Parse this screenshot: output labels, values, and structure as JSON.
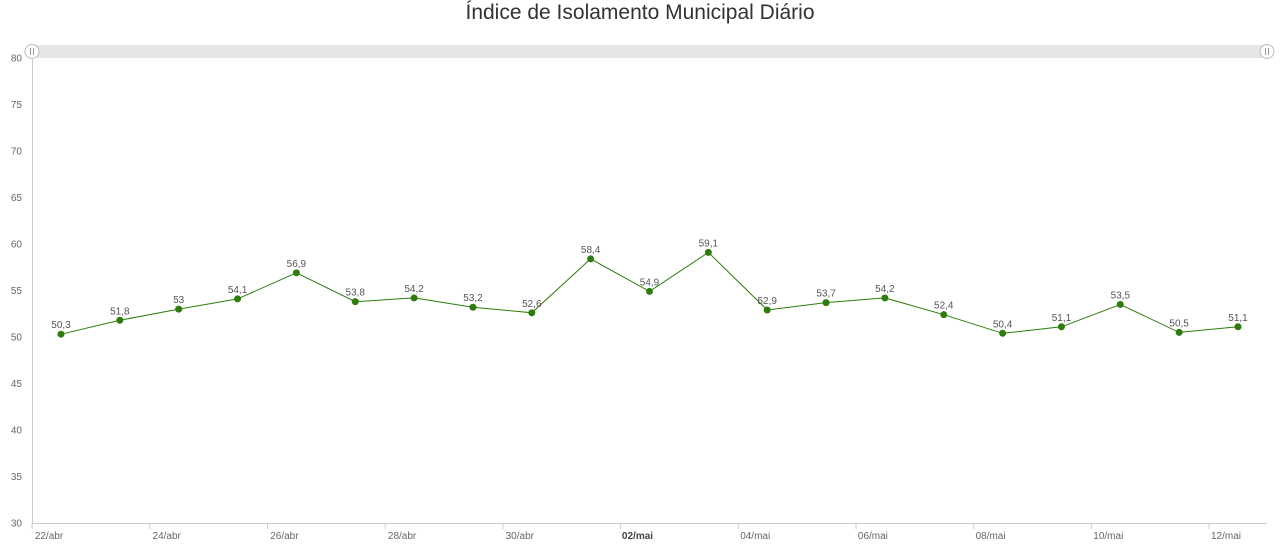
{
  "chart_data": {
    "type": "line",
    "title": "Índice de Isolamento Municipal Diário",
    "xlabel": "",
    "ylabel": "",
    "ylim": [
      30,
      80
    ],
    "yticks": [
      "30",
      "35",
      "40",
      "45",
      "50",
      "55",
      "60",
      "65",
      "70",
      "75",
      "80"
    ],
    "grid": false,
    "categories": [
      "22/abr",
      "23/abr",
      "24/abr",
      "25/abr",
      "26/abr",
      "27/abr",
      "28/abr",
      "29/abr",
      "30/abr",
      "01/mai",
      "02/mai",
      "03/mai",
      "04/mai",
      "05/mai",
      "06/mai",
      "07/mai",
      "08/mai",
      "09/mai",
      "10/mai",
      "11/mai",
      "12/mai"
    ],
    "xtick_labels": [
      "22/abr",
      "24/abr",
      "26/abr",
      "28/abr",
      "30/abr",
      "02/mai",
      "04/mai",
      "06/mai",
      "08/mai",
      "10/mai",
      "12/mai"
    ],
    "bold_tick": "02/mai",
    "series": [
      {
        "values": [
          50.3,
          51.8,
          53,
          54.1,
          56.9,
          53.8,
          54.2,
          53.2,
          52.6,
          58.4,
          54.9,
          59.1,
          52.9,
          53.7,
          54.2,
          52.4,
          50.4,
          51.1,
          53.5,
          50.5,
          51.1
        ],
        "labels": [
          "50,3",
          "51,8",
          "53",
          "54,1",
          "56,9",
          "53,8",
          "54,2",
          "53,2",
          "52,6",
          "58,4",
          "54,9",
          "59,1",
          "52,9",
          "53,7",
          "54,2",
          "52,4",
          "50,4",
          "51,1",
          "53,5",
          "50,5",
          "51,1"
        ],
        "color": "#2e7d0c"
      }
    ],
    "navigator": {
      "color": "#e6e6e6",
      "handle_color": "#ffffff"
    }
  }
}
